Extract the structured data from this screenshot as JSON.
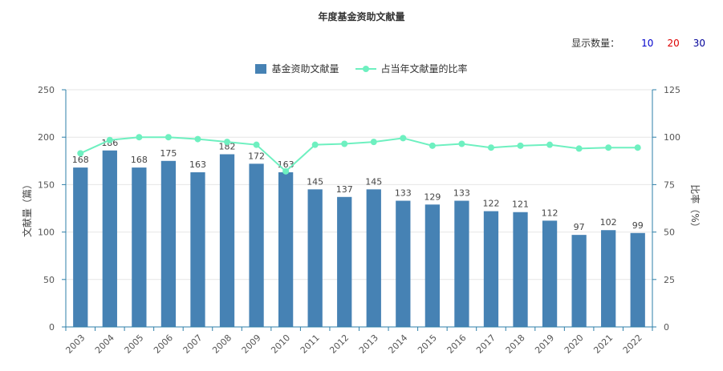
{
  "title": "年度基金资助文献量",
  "count_selector": {
    "label": "显示数量：",
    "options": [
      {
        "label": "10",
        "color": "#0000cc"
      },
      {
        "label": "20",
        "color": "#dd0000"
      },
      {
        "label": "30",
        "color": "#000099"
      }
    ]
  },
  "colors": {
    "bar": "#4682b4",
    "line": "#6ef0c0",
    "grid": "#e6e6e6",
    "axis": "#2e7fa8"
  },
  "chart_data": {
    "type": "bar",
    "title": "年度基金资助文献量",
    "categories": [
      "2003",
      "2004",
      "2005",
      "2006",
      "2007",
      "2008",
      "2009",
      "2010",
      "2011",
      "2012",
      "2013",
      "2014",
      "2015",
      "2016",
      "2017",
      "2018",
      "2019",
      "2020",
      "2021",
      "2022"
    ],
    "ylabel": "文献量（篇）",
    "y2label": "比率（%）",
    "ylim": [
      0,
      250
    ],
    "y2lim": [
      0,
      125
    ],
    "yticks": [
      "0",
      "50",
      "100",
      "150",
      "200",
      "250"
    ],
    "y2ticks": [
      "0",
      "25",
      "50",
      "75",
      "100",
      "125"
    ],
    "grid": true,
    "legend_position": "top-center",
    "series": [
      {
        "name": "基金资助文献量",
        "type": "bar",
        "axis": "left",
        "values": [
          168,
          186,
          168,
          175,
          163,
          182,
          172,
          163,
          145,
          137,
          145,
          133,
          129,
          133,
          122,
          121,
          112,
          97,
          102,
          99
        ]
      },
      {
        "name": "占当年文献量的比率",
        "type": "line",
        "axis": "right",
        "values": [
          91.5,
          98.5,
          100,
          100,
          99,
          97.5,
          96,
          82,
          96,
          96.5,
          97.5,
          99.5,
          95.5,
          96.5,
          94.5,
          95.5,
          96,
          94,
          94.5,
          94.5
        ]
      }
    ]
  }
}
